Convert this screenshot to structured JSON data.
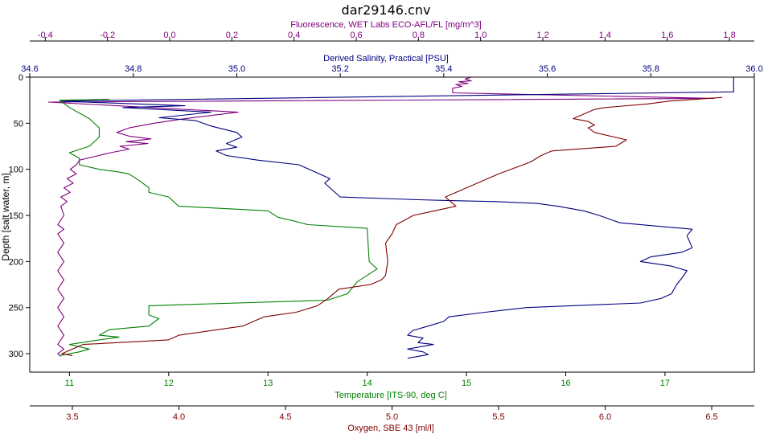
{
  "chart_data": {
    "type": "line",
    "title": "dar29146.cnv",
    "grid": false,
    "legend": "none",
    "axes": {
      "depth": {
        "label": "Depth [salt water, m]",
        "range": [
          0,
          320
        ],
        "reversed": true,
        "ticks": [
          0,
          50,
          100,
          150,
          200,
          250,
          300
        ],
        "tick_labels": [
          "0",
          "50",
          "100",
          "150",
          "200",
          "250",
          "300"
        ]
      },
      "fluorescence": {
        "label": "Fluorescence, WET Labs ECO-AFL/FL [mg/m^3]",
        "range": [
          -0.45,
          1.88
        ],
        "ticks": [
          -0.4,
          -0.2,
          0.0,
          0.2,
          0.4,
          0.6,
          0.8,
          1.0,
          1.2,
          1.4,
          1.6,
          1.8
        ],
        "tick_labels": [
          "-0.4",
          "-0.2",
          "0.0",
          "0.2",
          "0.4",
          "0.6",
          "0.8",
          "1.0",
          "1.2",
          "1.4",
          "1.6",
          "1.8"
        ],
        "color": "#800080"
      },
      "salinity": {
        "label": "Derived Salinity, Practical [PSU]",
        "range": [
          34.6,
          36.0
        ],
        "ticks": [
          34.6,
          34.8,
          35.0,
          35.2,
          35.4,
          35.6,
          35.8,
          36.0
        ],
        "tick_labels": [
          "34.6",
          "34.8",
          "35.0",
          "35.2",
          "35.4",
          "35.6",
          "35.8",
          "36.0"
        ],
        "color": "#000080"
      },
      "temperature": {
        "label": "Temperature [ITS-90, deg C]",
        "range": [
          10.6,
          17.9
        ],
        "ticks": [
          11,
          12,
          13,
          14,
          15,
          16,
          17
        ],
        "tick_labels": [
          "11",
          "12",
          "13",
          "14",
          "15",
          "16",
          "17"
        ],
        "color": "#008000"
      },
      "oxygen": {
        "label": "Oxygen, SBE 43 [ml/l]",
        "range": [
          3.3,
          6.7
        ],
        "ticks": [
          3.5,
          4.0,
          4.5,
          5.0,
          5.5,
          6.0,
          6.5
        ],
        "tick_labels": [
          "3.5",
          "4.0",
          "4.5",
          "5.0",
          "5.5",
          "6.0",
          "6.5"
        ],
        "color": "#800000"
      }
    },
    "series": [
      {
        "key": "fluorescence",
        "color": "#800080",
        "points": [
          [
            0.97,
            0
          ],
          [
            0.95,
            2
          ],
          [
            0.97,
            4
          ],
          [
            0.93,
            5
          ],
          [
            0.96,
            7
          ],
          [
            0.92,
            8
          ],
          [
            0.94,
            10
          ],
          [
            0.91,
            12
          ],
          [
            0.91,
            17
          ],
          [
            1.75,
            23
          ],
          [
            -0.39,
            27
          ],
          [
            0.22,
            38
          ],
          [
            0.05,
            45
          ],
          [
            -0.05,
            50
          ],
          [
            -0.13,
            55
          ],
          [
            -0.17,
            60
          ],
          [
            -0.13,
            64
          ],
          [
            -0.06,
            67
          ],
          [
            -0.14,
            70
          ],
          [
            -0.07,
            72
          ],
          [
            -0.16,
            75
          ],
          [
            -0.13,
            78
          ],
          [
            -0.19,
            82
          ],
          [
            -0.24,
            86
          ],
          [
            -0.29,
            90
          ],
          [
            -0.3,
            95
          ],
          [
            -0.32,
            100
          ],
          [
            -0.3,
            105
          ],
          [
            -0.33,
            110
          ],
          [
            -0.31,
            115
          ],
          [
            -0.34,
            120
          ],
          [
            -0.32,
            125
          ],
          [
            -0.35,
            130
          ],
          [
            -0.33,
            135
          ],
          [
            -0.35,
            140
          ],
          [
            -0.34,
            150
          ],
          [
            -0.36,
            160
          ],
          [
            -0.34,
            165
          ],
          [
            -0.36,
            170
          ],
          [
            -0.34,
            180
          ],
          [
            -0.36,
            190
          ],
          [
            -0.34,
            200
          ],
          [
            -0.36,
            210
          ],
          [
            -0.34,
            220
          ],
          [
            -0.36,
            230
          ],
          [
            -0.34,
            240
          ],
          [
            -0.36,
            250
          ],
          [
            -0.34,
            260
          ],
          [
            -0.36,
            270
          ],
          [
            -0.34,
            280
          ],
          [
            -0.36,
            290
          ],
          [
            -0.34,
            295
          ],
          [
            -0.36,
            300
          ],
          [
            -0.35,
            303
          ]
        ]
      },
      {
        "key": "salinity",
        "color": "#000080",
        "points": [
          [
            35.96,
            0
          ],
          [
            35.96,
            16
          ],
          [
            34.66,
            26
          ],
          [
            34.9,
            31
          ],
          [
            34.78,
            33
          ],
          [
            34.95,
            38
          ],
          [
            34.85,
            44
          ],
          [
            34.92,
            47
          ],
          [
            34.95,
            53
          ],
          [
            35.0,
            60
          ],
          [
            35.01,
            65
          ],
          [
            34.98,
            72
          ],
          [
            35.0,
            76
          ],
          [
            34.96,
            80
          ],
          [
            34.98,
            85
          ],
          [
            35.04,
            90
          ],
          [
            35.12,
            95
          ],
          [
            35.18,
            110
          ],
          [
            35.17,
            115
          ],
          [
            35.2,
            130
          ],
          [
            35.35,
            133
          ],
          [
            35.42,
            134
          ],
          [
            35.5,
            135
          ],
          [
            35.58,
            137
          ],
          [
            35.62,
            140
          ],
          [
            35.67,
            145
          ],
          [
            35.7,
            150
          ],
          [
            35.74,
            158
          ],
          [
            35.82,
            162
          ],
          [
            35.88,
            165
          ],
          [
            35.87,
            172
          ],
          [
            35.88,
            185
          ],
          [
            35.86,
            190
          ],
          [
            35.8,
            195
          ],
          [
            35.78,
            200
          ],
          [
            35.84,
            205
          ],
          [
            35.87,
            210
          ],
          [
            35.86,
            218
          ],
          [
            35.85,
            225
          ],
          [
            35.84,
            235
          ],
          [
            35.82,
            240
          ],
          [
            35.78,
            245
          ],
          [
            35.56,
            250
          ],
          [
            35.48,
            255
          ],
          [
            35.41,
            260
          ],
          [
            35.4,
            265
          ],
          [
            35.37,
            270
          ],
          [
            35.34,
            275
          ],
          [
            35.33,
            280
          ],
          [
            35.36,
            283
          ],
          [
            35.35,
            288
          ],
          [
            35.38,
            290
          ],
          [
            35.33,
            295
          ],
          [
            35.36,
            298
          ],
          [
            35.37,
            301
          ],
          [
            35.33,
            305
          ]
        ]
      },
      {
        "key": "temperature",
        "color": "#008000",
        "points": [
          [
            11.4,
            24
          ],
          [
            10.9,
            25
          ],
          [
            11.0,
            33
          ],
          [
            11.2,
            45
          ],
          [
            11.3,
            55
          ],
          [
            11.3,
            65
          ],
          [
            11.2,
            75
          ],
          [
            11.0,
            82
          ],
          [
            11.1,
            88
          ],
          [
            11.1,
            95
          ],
          [
            11.3,
            100
          ],
          [
            11.5,
            103
          ],
          [
            11.6,
            105
          ],
          [
            11.7,
            112
          ],
          [
            11.8,
            120
          ],
          [
            11.8,
            125
          ],
          [
            12.0,
            130
          ],
          [
            12.1,
            140
          ],
          [
            13.0,
            145
          ],
          [
            13.1,
            152
          ],
          [
            13.3,
            157
          ],
          [
            13.4,
            160
          ],
          [
            14.0,
            164
          ],
          [
            14.02,
            200
          ],
          [
            14.1,
            208
          ],
          [
            13.9,
            222
          ],
          [
            13.8,
            235
          ],
          [
            13.6,
            242
          ],
          [
            11.8,
            248
          ],
          [
            11.8,
            258
          ],
          [
            11.9,
            262
          ],
          [
            11.8,
            270
          ],
          [
            11.4,
            274
          ],
          [
            11.3,
            280
          ],
          [
            11.5,
            282
          ],
          [
            11.3,
            285
          ],
          [
            11.0,
            290
          ],
          [
            11.2,
            295
          ],
          [
            11.1,
            298
          ],
          [
            10.9,
            302
          ]
        ]
      },
      {
        "key": "oxygen",
        "color": "#800000",
        "points": [
          [
            6.55,
            22
          ],
          [
            6.3,
            26
          ],
          [
            6.2,
            29
          ],
          [
            6.0,
            33
          ],
          [
            5.95,
            35
          ],
          [
            5.85,
            45
          ],
          [
            5.92,
            48
          ],
          [
            5.95,
            52
          ],
          [
            5.92,
            55
          ],
          [
            5.95,
            60
          ],
          [
            6.1,
            68
          ],
          [
            6.05,
            75
          ],
          [
            5.75,
            80
          ],
          [
            5.7,
            85
          ],
          [
            5.65,
            92
          ],
          [
            5.5,
            105
          ],
          [
            5.4,
            115
          ],
          [
            5.3,
            125
          ],
          [
            5.25,
            130
          ],
          [
            5.3,
            140
          ],
          [
            5.2,
            145
          ],
          [
            5.1,
            150
          ],
          [
            5.02,
            160
          ],
          [
            5.0,
            170
          ],
          [
            4.97,
            180
          ],
          [
            4.98,
            200
          ],
          [
            4.97,
            215
          ],
          [
            4.95,
            220
          ],
          [
            4.9,
            225
          ],
          [
            4.75,
            230
          ],
          [
            4.7,
            240
          ],
          [
            4.65,
            248
          ],
          [
            4.55,
            255
          ],
          [
            4.4,
            260
          ],
          [
            4.35,
            265
          ],
          [
            4.3,
            270
          ],
          [
            4.0,
            280
          ],
          [
            3.95,
            285
          ],
          [
            3.55,
            290
          ],
          [
            3.45,
            300
          ],
          [
            3.5,
            302
          ]
        ]
      }
    ]
  }
}
